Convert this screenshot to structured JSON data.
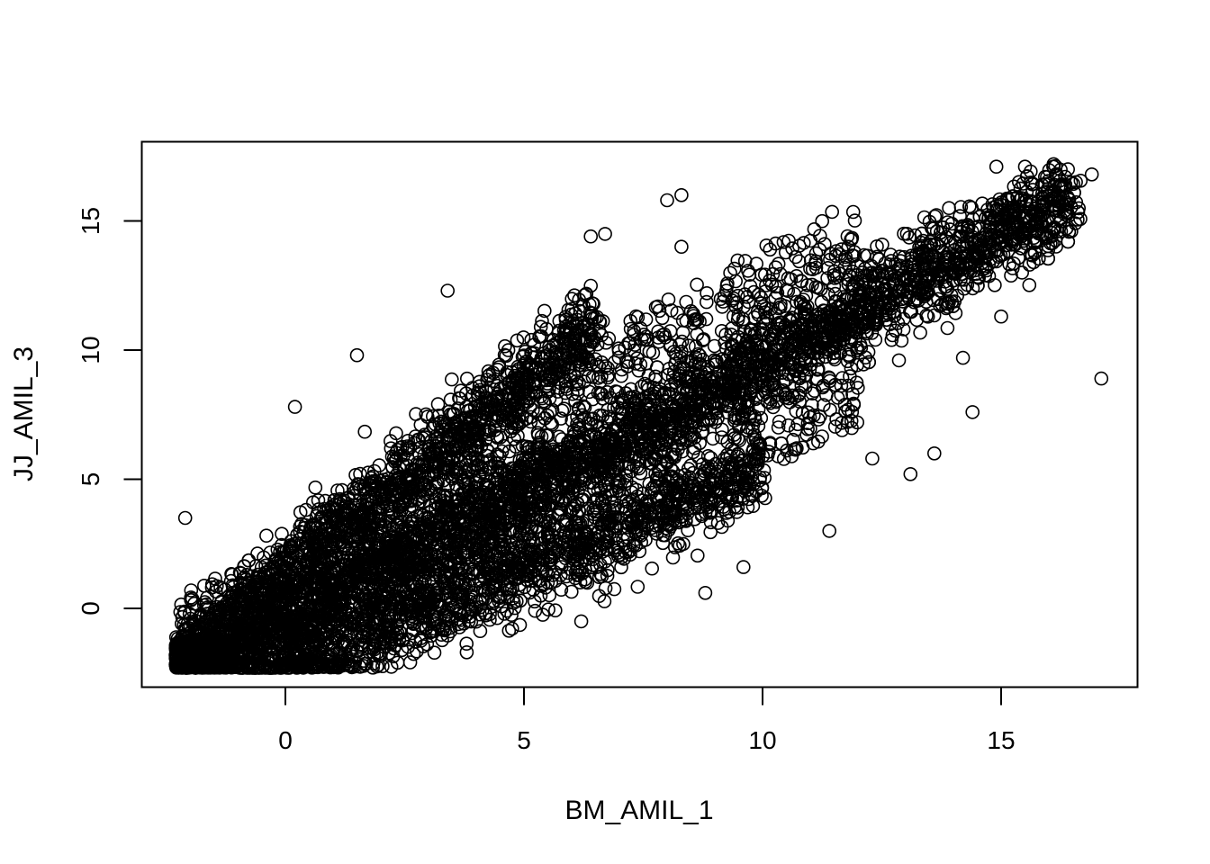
{
  "chart_data": {
    "type": "scatter",
    "title": "",
    "xlabel": "BM_AMIL_1",
    "ylabel": "JJ_AMIL_3",
    "xlim": [
      -3,
      18
    ],
    "ylim": [
      -3,
      18
    ],
    "x_ticks": [
      0,
      5,
      10,
      15
    ],
    "y_ticks": [
      0,
      5,
      10,
      15
    ],
    "marker": "open-circle",
    "marker_color": "#000000",
    "grid": false,
    "legend": "none",
    "approx_point_count": 30000,
    "distribution": {
      "description_bands": [
        {
          "name": "main",
          "slope": 1.0,
          "intercept": -0.5,
          "x_range": [
            -2.3,
            16.5
          ],
          "spread": 0.9
        },
        {
          "name": "upper",
          "slope": 1.45,
          "intercept": 1.5,
          "x_range": [
            -2.3,
            6.5
          ],
          "spread": 0.8
        },
        {
          "name": "lower",
          "slope": 0.8,
          "intercept": -2.6,
          "x_range": [
            0.0,
            10.0
          ],
          "spread": 0.8
        }
      ]
    },
    "notable_points": [
      {
        "x": 17.1,
        "y": 8.9
      },
      {
        "x": 14.4,
        "y": 7.6
      },
      {
        "x": 13.6,
        "y": 6.0
      },
      {
        "x": 13.1,
        "y": 5.2
      },
      {
        "x": 8.8,
        "y": 0.6
      },
      {
        "x": 6.2,
        "y": -0.5
      },
      {
        "x": 3.8,
        "y": -1.7
      },
      {
        "x": -2.1,
        "y": 3.5
      },
      {
        "x": 3.4,
        "y": 12.3
      },
      {
        "x": 8.0,
        "y": 15.8
      },
      {
        "x": 8.3,
        "y": 16.0
      },
      {
        "x": 8.3,
        "y": 14.0
      },
      {
        "x": 6.7,
        "y": 14.5
      },
      {
        "x": 6.4,
        "y": 14.4
      },
      {
        "x": 14.9,
        "y": 17.1
      },
      {
        "x": 15.5,
        "y": 17.1
      },
      {
        "x": 16.1,
        "y": 17.2
      },
      {
        "x": 16.9,
        "y": 16.8
      },
      {
        "x": 16.4,
        "y": 17.0
      },
      {
        "x": -2.2,
        "y": -2.2
      },
      {
        "x": 12.3,
        "y": 5.8
      },
      {
        "x": 11.4,
        "y": 3.0
      },
      {
        "x": 9.6,
        "y": 1.6
      },
      {
        "x": 1.5,
        "y": 9.8
      },
      {
        "x": 0.2,
        "y": 7.8
      },
      {
        "x": 15.0,
        "y": 11.3
      },
      {
        "x": 14.2,
        "y": 9.7
      },
      {
        "x": 11.8,
        "y": 14.0
      }
    ]
  }
}
